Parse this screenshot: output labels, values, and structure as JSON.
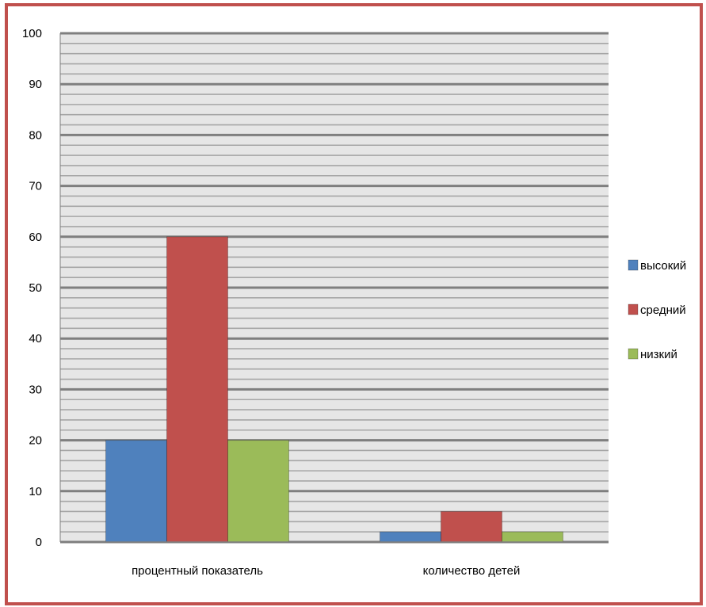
{
  "chart_data": {
    "type": "bar",
    "categories": [
      "процентный показатель",
      "количество детей"
    ],
    "series": [
      {
        "name": "высокий",
        "values": [
          20,
          2
        ],
        "color": "#4f81bd"
      },
      {
        "name": "средний",
        "values": [
          60,
          6
        ],
        "color": "#c0504d"
      },
      {
        "name": "низкий",
        "values": [
          20,
          2
        ],
        "color": "#9bbb59"
      }
    ],
    "ylim": [
      0,
      100
    ],
    "yticks": [
      0,
      10,
      20,
      30,
      40,
      50,
      60,
      70,
      80,
      90,
      100
    ],
    "grid": true,
    "legend": "right",
    "title": "",
    "xlabel": "",
    "ylabel": ""
  },
  "colors": {
    "frame_border": "#c0504d",
    "plot_background": "#e6e6e6",
    "minor_grid": "#a6a6a6",
    "major_grid": "#7f7f7f"
  }
}
